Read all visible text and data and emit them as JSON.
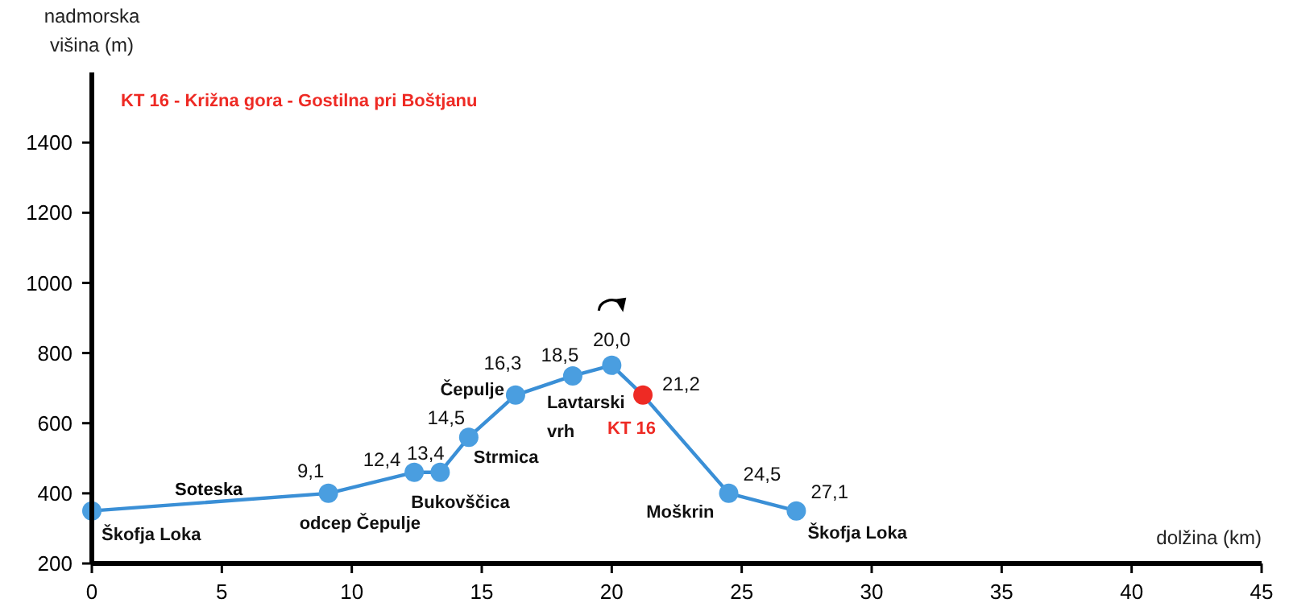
{
  "chart_data": {
    "type": "line",
    "title": "KT 16 - Križna gora - Gostilna pri Boštjanu",
    "xlabel": "dolžina (km)",
    "ylabel": "nadmorska višina (m)",
    "x": [
      0,
      9.1,
      12.4,
      13.4,
      14.5,
      16.3,
      18.5,
      20.0,
      21.2,
      24.5,
      27.1
    ],
    "series": [
      {
        "color": "#3a8fd6",
        "colors": [
          "#4a9ee0",
          "#4a9ee0",
          "#4a9ee0",
          "#4a9ee0",
          "#4a9ee0",
          "#4a9ee0",
          "#4a9ee0",
          "#4a9ee0",
          "#ee2a24",
          "#4a9ee0",
          "#4a9ee0"
        ],
        "values": [
          350,
          400,
          460,
          460,
          560,
          680,
          735,
          765,
          680,
          400,
          350
        ]
      }
    ],
    "xlim": [
      0,
      45
    ],
    "xticks": [
      0,
      5,
      10,
      15,
      20,
      25,
      30,
      35,
      40,
      45
    ],
    "ylim": [
      200,
      1600
    ],
    "yticks": [
      200,
      400,
      600,
      800,
      1000,
      1200,
      1400
    ],
    "grid": false,
    "marker": "circle",
    "line_style": "solid",
    "annotations": [
      {
        "text": "Škofja Loka",
        "x": 0,
        "y": 350
      },
      "Soteska",
      {
        "text": "odcep Čepulje",
        "x": 9.1,
        "y": 400
      },
      {
        "text": "Bukovščica",
        "x": 13.4,
        "y": 460
      },
      {
        "text": "Strmica",
        "x": 14.5,
        "y": 560
      },
      {
        "text": "Čepulje",
        "x": 16.3,
        "y": 680
      },
      {
        "text": "Lavtarski vrh",
        "x": 18.5,
        "y": 735
      },
      {
        "text": "KT 16",
        "x": 21.2,
        "y": 680
      },
      {
        "text": "Moškrin",
        "x": 24.5,
        "y": 400
      },
      {
        "text": "Škofja Loka",
        "x": 27.1,
        "y": 350
      },
      {
        "text": "9,1",
        "x": 9.1,
        "y": 400
      },
      {
        "text": "12,4",
        "x": 12.4,
        "y": 460
      },
      {
        "text": "13,4",
        "x": 13.4,
        "y": 460
      },
      {
        "text": "14,5",
        "x": 14.5,
        "y": 560
      },
      {
        "text": "16,3",
        "x": 16.3,
        "y": 680
      },
      {
        "text": "18,5",
        "x": 18.5,
        "y": 735
      },
      {
        "text": "20,0",
        "x": 20.0,
        "y": 765
      },
      {
        "text": "21,2",
        "x": 21.2,
        "y": 680
      },
      {
        "text": "24,5",
        "x": 24.5,
        "y": 400
      },
      {
        "text": "27,1",
        "x": 27.1,
        "y": 350
      }
    ]
  }
}
